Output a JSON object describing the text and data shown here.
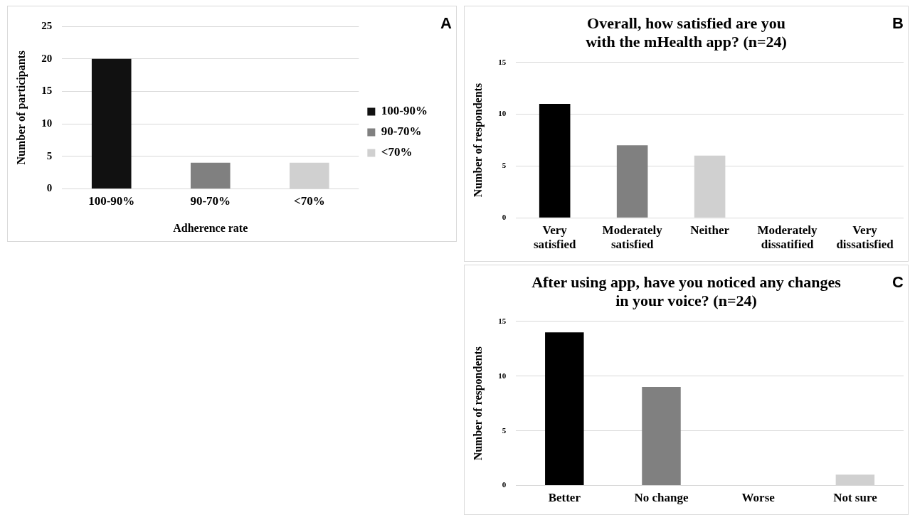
{
  "chart_data": [
    {
      "type": "bar",
      "categories": [
        "100-90%",
        "90-70%",
        "<70%"
      ],
      "series": [
        {
          "name": "100-90%",
          "color": "#111111",
          "values": [
            20,
            null,
            null
          ]
        },
        {
          "name": "90-70%",
          "color": "#808080",
          "values": [
            null,
            4,
            null
          ]
        },
        {
          "name": "<70%",
          "color": "#d0d0d0",
          "values": [
            null,
            null,
            4
          ]
        }
      ],
      "xlabel": "Adherence rate",
      "ylabel": "Number of participants",
      "ylim": [
        0,
        25
      ],
      "yticks": [
        0,
        5,
        10,
        15,
        20,
        25
      ],
      "grid": "y",
      "legend": "right",
      "annotations": [
        "A"
      ]
    },
    {
      "type": "bar",
      "title": "Overall, how satisfied are you\nwith the mHealth app? (n=24)",
      "categories": [
        "Very\nsatisfied",
        "Moderately\nsatisfied",
        "Neither",
        "Moderately\ndissatified",
        "Very\ndissatisfied"
      ],
      "values": [
        11,
        7,
        6,
        0,
        0
      ],
      "colors": [
        "#000000",
        "#808080",
        "#d0d0d0",
        "#d0d0d0",
        "#d0d0d0"
      ],
      "ylabel": "Number of respondents",
      "ylim": [
        0,
        15
      ],
      "yticks": [
        0,
        5,
        10,
        15
      ],
      "grid": "y",
      "annotations": [
        "B"
      ]
    },
    {
      "type": "bar",
      "title": "After using app, have you noticed any changes\nin your voice? (n=24)",
      "categories": [
        "Better",
        "No change",
        "Worse",
        "Not sure"
      ],
      "values": [
        14,
        9,
        0,
        1
      ],
      "colors": [
        "#000000",
        "#808080",
        "#d0d0d0",
        "#d0d0d0"
      ],
      "ylabel": "Number of respondents",
      "ylim": [
        0,
        15
      ],
      "yticks": [
        0,
        5,
        10,
        15
      ],
      "grid": "y",
      "annotations": [
        "C"
      ]
    }
  ]
}
